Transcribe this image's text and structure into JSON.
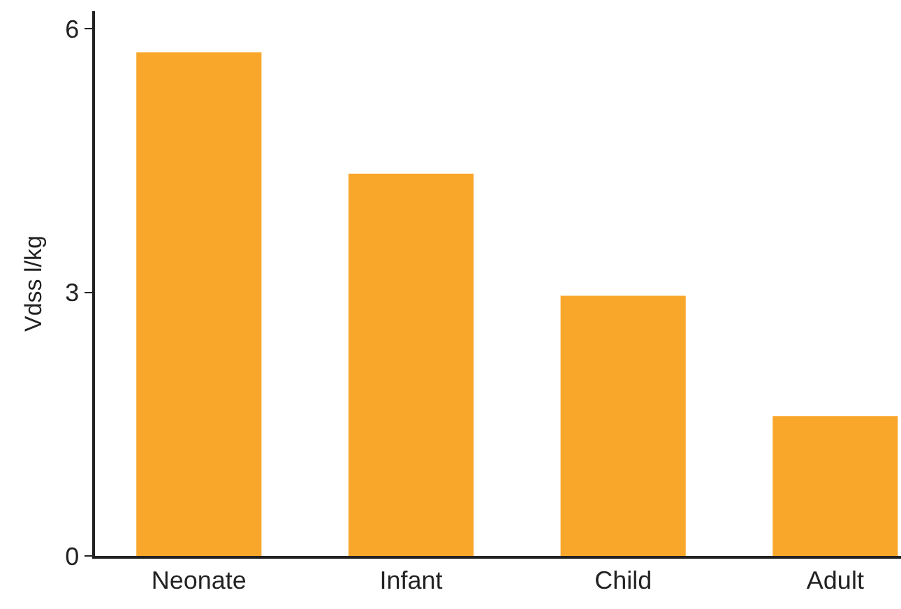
{
  "chart_data": {
    "type": "bar",
    "ylabel": "Vdss l/kg",
    "categories": [
      "Neonate",
      "Infant",
      "Child",
      "Adult"
    ],
    "values": [
      5.73,
      4.35,
      2.96,
      1.59
    ],
    "color": "#f9a72b",
    "ylim": [
      0,
      6.2
    ],
    "yticks": [
      0,
      3,
      6
    ]
  }
}
